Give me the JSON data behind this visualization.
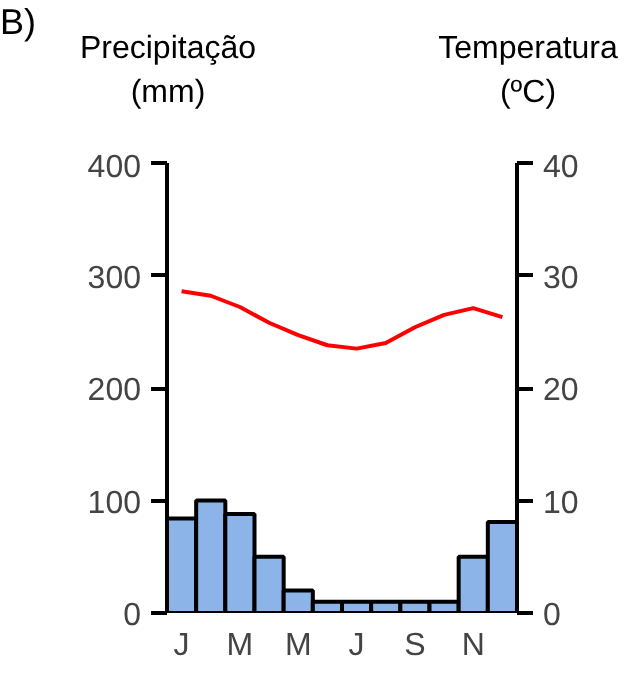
{
  "chart_data": {
    "type": "bar",
    "title": "B)",
    "ylabel": "Precipitação (mm)",
    "y2label": "Temperatura (ºC)",
    "categories": [
      "J",
      null,
      "M",
      null,
      "M",
      null,
      "J",
      null,
      "S",
      null,
      "N",
      null
    ],
    "series": [
      {
        "color": "#8cb4e8",
        "values": [
          84,
          100,
          88,
          50,
          20,
          10,
          10,
          10,
          10,
          10,
          50,
          81
        ]
      },
      {
        "type": "line",
        "axis": "y2",
        "color": "#ff0000",
        "values": [
          28.6,
          28.2,
          27.2,
          25.8,
          24.7,
          23.8,
          23.5,
          24.0,
          25.4,
          26.5,
          27.1,
          26.3
        ]
      }
    ],
    "ylim": [
      0,
      400
    ],
    "yticks": [
      0,
      100,
      200,
      300,
      400
    ],
    "y2lim": [
      0,
      40
    ],
    "y2ticks": [
      0,
      10,
      20,
      30,
      40
    ],
    "grid": false,
    "marker": "none",
    "line_style": "solid"
  }
}
